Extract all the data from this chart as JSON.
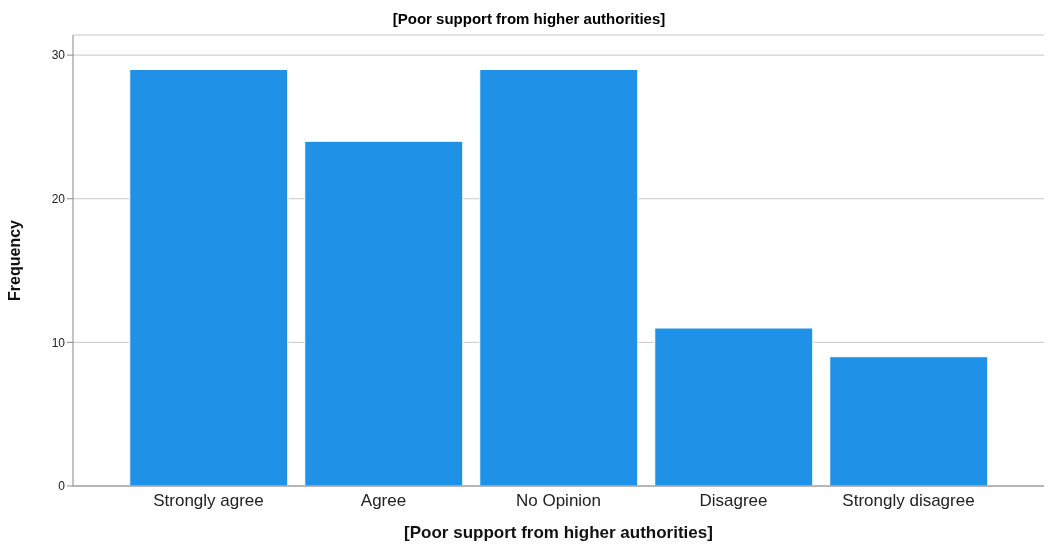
{
  "chart_data": {
    "type": "bar",
    "title": "[Poor support from higher authorities]",
    "xlabel": "[Poor support from higher authorities]",
    "ylabel": "Frequency",
    "categories": [
      "Strongly agree",
      "Agree",
      "No Opinion",
      "Disagree",
      "Strongly disagree"
    ],
    "values": [
      29,
      24,
      29,
      11,
      9
    ],
    "color": "#1f91e6",
    "ylim": [
      0,
      31.4
    ],
    "yticks": [
      0,
      10,
      20,
      30
    ],
    "grid": "y"
  }
}
